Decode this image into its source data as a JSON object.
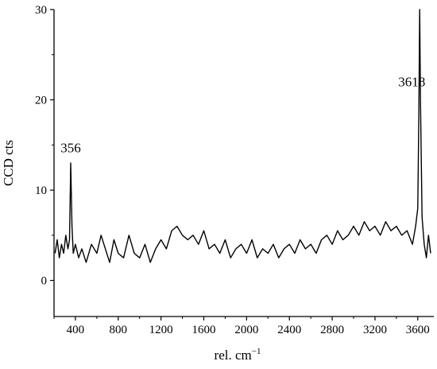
{
  "chart_data": {
    "type": "line",
    "title": "",
    "xlabel": "rel. cm",
    "xlabel_superscript": "−1",
    "ylabel": "CCD cts",
    "xlim": [
      200,
      3750
    ],
    "ylim": [
      -4,
      30
    ],
    "xticks": [
      400,
      800,
      1200,
      1600,
      2000,
      2400,
      2800,
      3200,
      3600
    ],
    "yticks": [
      0,
      10,
      20,
      30
    ],
    "grid": false,
    "legend": "none",
    "line_color": "#000000",
    "annotations": [
      {
        "text": "356",
        "x": 356,
        "y": 14.2
      },
      {
        "text": "3618",
        "x": 3618,
        "y": 21.5
      }
    ],
    "series": [
      {
        "x": [
          210,
          230,
          250,
          270,
          290,
          310,
          330,
          345,
          356,
          368,
          380,
          400,
          430,
          460,
          500,
          550,
          600,
          640,
          680,
          720,
          760,
          800,
          850,
          900,
          950,
          1000,
          1050,
          1100,
          1150,
          1200,
          1250,
          1300,
          1350,
          1400,
          1450,
          1500,
          1550,
          1600,
          1650,
          1700,
          1750,
          1800,
          1850,
          1900,
          1950,
          2000,
          2050,
          2100,
          2150,
          2200,
          2250,
          2300,
          2350,
          2400,
          2450,
          2500,
          2550,
          2600,
          2650,
          2700,
          2750,
          2800,
          2850,
          2900,
          2950,
          3000,
          3050,
          3100,
          3150,
          3200,
          3250,
          3300,
          3350,
          3400,
          3450,
          3500,
          3550,
          3580,
          3600,
          3610,
          3618,
          3625,
          3640,
          3660,
          3680,
          3700,
          3720
        ],
        "y": [
          3.0,
          4.5,
          2.5,
          4.0,
          3.0,
          5.0,
          3.5,
          4.5,
          13.0,
          6.0,
          3.0,
          4.0,
          2.5,
          3.5,
          2.0,
          4.0,
          3.0,
          5.0,
          3.5,
          2.0,
          4.5,
          3.0,
          2.5,
          5.0,
          3.0,
          2.5,
          4.0,
          2.0,
          3.5,
          4.5,
          3.5,
          5.5,
          6.0,
          5.0,
          4.5,
          5.0,
          4.0,
          5.5,
          3.5,
          4.0,
          3.0,
          4.5,
          2.5,
          3.5,
          4.0,
          3.0,
          4.5,
          2.5,
          3.5,
          3.0,
          4.0,
          2.5,
          3.5,
          4.0,
          3.0,
          4.5,
          3.5,
          4.0,
          3.0,
          4.5,
          5.0,
          4.0,
          5.5,
          4.5,
          5.0,
          6.0,
          5.0,
          6.5,
          5.5,
          6.0,
          5.0,
          6.5,
          5.5,
          6.0,
          5.0,
          5.5,
          4.0,
          6.0,
          8.0,
          18.0,
          30.0,
          20.0,
          7.0,
          4.0,
          2.5,
          5.0,
          3.0
        ]
      }
    ]
  }
}
